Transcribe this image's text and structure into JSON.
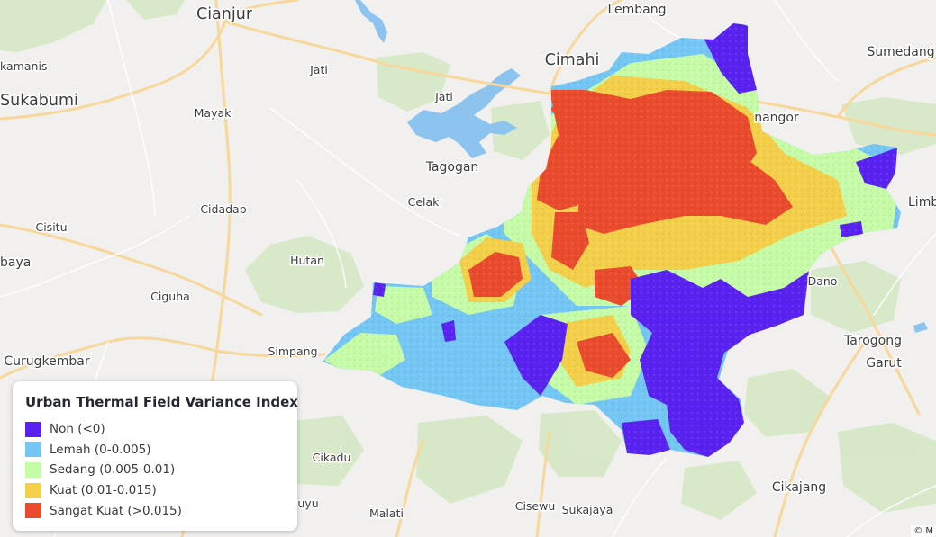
{
  "map": {
    "places": [
      {
        "name": "Cianjur",
        "size": "large"
      },
      {
        "name": "Lembang",
        "size": "medium"
      },
      {
        "name": "Cimahi",
        "size": "large"
      },
      {
        "name": "Sumedang",
        "size": "medium"
      },
      {
        "name": "kamanis",
        "size": "small"
      },
      {
        "name": "Jati",
        "size": "small"
      },
      {
        "name": "Sukabumi",
        "size": "large"
      },
      {
        "name": "Mayak",
        "size": "small"
      },
      {
        "name": "Jati",
        "size": "small"
      },
      {
        "name": "nangor",
        "size": "medium"
      },
      {
        "name": "Tagogan",
        "size": "medium"
      },
      {
        "name": "Celak",
        "size": "small"
      },
      {
        "name": "Limb",
        "size": "medium"
      },
      {
        "name": "Cidadap",
        "size": "small"
      },
      {
        "name": "Cisitu",
        "size": "small"
      },
      {
        "name": "baya",
        "size": "medium"
      },
      {
        "name": "Hutan",
        "size": "small"
      },
      {
        "name": "Dano",
        "size": "small"
      },
      {
        "name": "Ciguha",
        "size": "small"
      },
      {
        "name": "Tarogong",
        "size": "medium"
      },
      {
        "name": "Simpang",
        "size": "small"
      },
      {
        "name": "Garut",
        "size": "medium"
      },
      {
        "name": "Curugkembar",
        "size": "medium"
      },
      {
        "name": "Cikadu",
        "size": "small"
      },
      {
        "name": "Cikajang",
        "size": "medium"
      },
      {
        "name": "uyu",
        "size": "small"
      },
      {
        "name": "Cisewu",
        "size": "small"
      },
      {
        "name": "Sukajaya",
        "size": "small"
      },
      {
        "name": "Malati",
        "size": "small"
      }
    ],
    "colors": {
      "land": "#f2f0ee",
      "forest": "#d5e8c4",
      "water": "#8cc4ef",
      "road": "#f7d79a"
    }
  },
  "legend": {
    "title": "Urban Thermal Field Variance Index",
    "classes": [
      {
        "label": "Non (<0)",
        "color": "#5a22f0"
      },
      {
        "label": "Lemah (0-0.005)",
        "color": "#74c7f5"
      },
      {
        "label": "Sedang (0.005-0.01)",
        "color": "#c6fca8"
      },
      {
        "label": "Kuat (0.01-0.015)",
        "color": "#f4d04a"
      },
      {
        "label": "Sangat Kuat (>0.015)",
        "color": "#ea4b2c"
      }
    ]
  },
  "attribution": "© M"
}
